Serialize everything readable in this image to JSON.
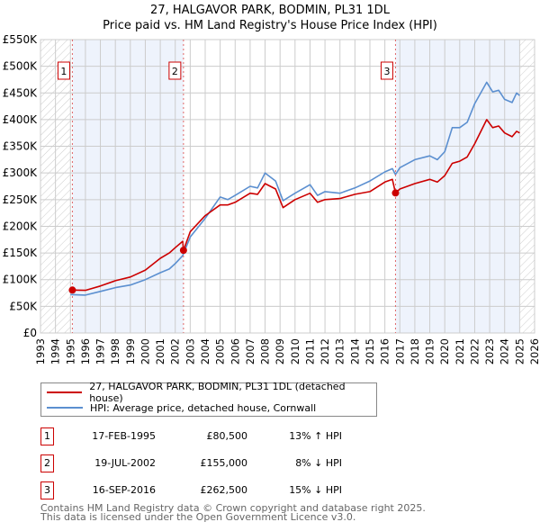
{
  "chart_data": {
    "type": "line",
    "title": "27, HALGAVOR PARK, BODMIN, PL31 1DL",
    "subtitle": "Price paid vs. HM Land Registry's House Price Index (HPI)",
    "xlabel": "",
    "ylabel": "",
    "xlim": [
      1993,
      2026
    ],
    "ylim": [
      0,
      550000
    ],
    "x_ticks": [
      "1993",
      "1994",
      "1995",
      "1996",
      "1997",
      "1998",
      "1999",
      "2000",
      "2001",
      "2002",
      "2003",
      "2004",
      "2005",
      "2006",
      "2007",
      "2008",
      "2009",
      "2010",
      "2011",
      "2012",
      "2013",
      "2014",
      "2015",
      "2016",
      "2017",
      "2018",
      "2019",
      "2020",
      "2021",
      "2022",
      "2023",
      "2024",
      "2025",
      "2026"
    ],
    "y_ticks": [
      {
        "value": 0,
        "label": "£0"
      },
      {
        "value": 50000,
        "label": "£50K"
      },
      {
        "value": 100000,
        "label": "£100K"
      },
      {
        "value": 150000,
        "label": "£150K"
      },
      {
        "value": 200000,
        "label": "£200K"
      },
      {
        "value": 250000,
        "label": "£250K"
      },
      {
        "value": 300000,
        "label": "£300K"
      },
      {
        "value": 350000,
        "label": "£350K"
      },
      {
        "value": 400000,
        "label": "£400K"
      },
      {
        "value": 450000,
        "label": "£450K"
      },
      {
        "value": 500000,
        "label": "£500K"
      },
      {
        "value": 550000,
        "label": "£550K"
      }
    ],
    "grid": true,
    "shaded_ranges": [
      [
        1995.13,
        2002.55
      ],
      [
        2016.71,
        2025.0
      ]
    ],
    "hatched_ranges": [
      [
        1993,
        1995.0
      ],
      [
        2025.0,
        2026
      ]
    ],
    "series": [
      {
        "name": "27, HALGAVOR PARK, BODMIN, PL31 1DL (detached house)",
        "color": "#cc0000",
        "x": [
          1995.13,
          1996,
          1997,
          1998,
          1999,
          2000,
          2001,
          2001.6,
          2002.0,
          2002.5,
          2002.55,
          2003,
          2004,
          2005,
          2005.5,
          2006,
          2007,
          2007.5,
          2008,
          2008.7,
          2009.2,
          2010,
          2011,
          2011.5,
          2012,
          2013,
          2014,
          2015,
          2016,
          2016.5,
          2016.71,
          2017,
          2018,
          2019,
          2019.5,
          2020,
          2020.5,
          2021,
          2021.5,
          2022,
          2022.8,
          2023.2,
          2023.6,
          2024,
          2024.5,
          2024.8,
          2025
        ],
        "y": [
          80500,
          80000,
          88000,
          98000,
          105000,
          118000,
          140000,
          150000,
          160000,
          172000,
          155000,
          190000,
          220000,
          240000,
          240000,
          245000,
          262000,
          260000,
          280000,
          270000,
          235000,
          250000,
          262000,
          245000,
          250000,
          252000,
          260000,
          265000,
          283000,
          288000,
          262500,
          270000,
          280000,
          288000,
          283000,
          295000,
          318000,
          322000,
          330000,
          355000,
          400000,
          385000,
          388000,
          375000,
          368000,
          378000,
          375000
        ]
      },
      {
        "name": "HPI: Average price, detached house, Cornwall",
        "color": "#5b8fd0",
        "x": [
          1995.0,
          1996,
          1997,
          1998,
          1999,
          2000,
          2001,
          2001.6,
          2002.0,
          2002.5,
          2003,
          2004,
          2005,
          2005.5,
          2006,
          2007,
          2007.5,
          2008,
          2008.7,
          2009.2,
          2010,
          2011,
          2011.5,
          2012,
          2013,
          2014,
          2015,
          2016,
          2016.5,
          2016.71,
          2017,
          2018,
          2019,
          2019.5,
          2020,
          2020.5,
          2021,
          2021.5,
          2022,
          2022.8,
          2023.2,
          2023.6,
          2024,
          2024.5,
          2024.8,
          2025
        ],
        "y": [
          72000,
          71000,
          78000,
          85000,
          90000,
          100000,
          113000,
          120000,
          130000,
          145000,
          180000,
          215000,
          255000,
          250000,
          258000,
          275000,
          272000,
          300000,
          285000,
          248000,
          262000,
          278000,
          258000,
          265000,
          262000,
          272000,
          285000,
          302000,
          308000,
          297000,
          310000,
          325000,
          332000,
          325000,
          340000,
          385000,
          385000,
          395000,
          430000,
          470000,
          452000,
          455000,
          438000,
          432000,
          450000,
          445000
        ]
      }
    ],
    "markers": [
      {
        "label": "1",
        "x": 1995.13,
        "y": 80500
      },
      {
        "label": "2",
        "x": 2002.55,
        "y": 155000
      },
      {
        "label": "3",
        "x": 2016.71,
        "y": 262500
      }
    ],
    "legend_placement": "bottom"
  },
  "transactions": [
    {
      "num": "1",
      "date": "17-FEB-1995",
      "price": "£80,500",
      "hpi": "13% ↑ HPI"
    },
    {
      "num": "2",
      "date": "19-JUL-2002",
      "price": "£155,000",
      "hpi": "8% ↓ HPI"
    },
    {
      "num": "3",
      "date": "16-SEP-2016",
      "price": "£262,500",
      "hpi": "15% ↓ HPI"
    }
  ],
  "footer": {
    "line1": "Contains HM Land Registry data © Crown copyright and database right 2025.",
    "line2": "This data is licensed under the Open Government Licence v3.0."
  }
}
